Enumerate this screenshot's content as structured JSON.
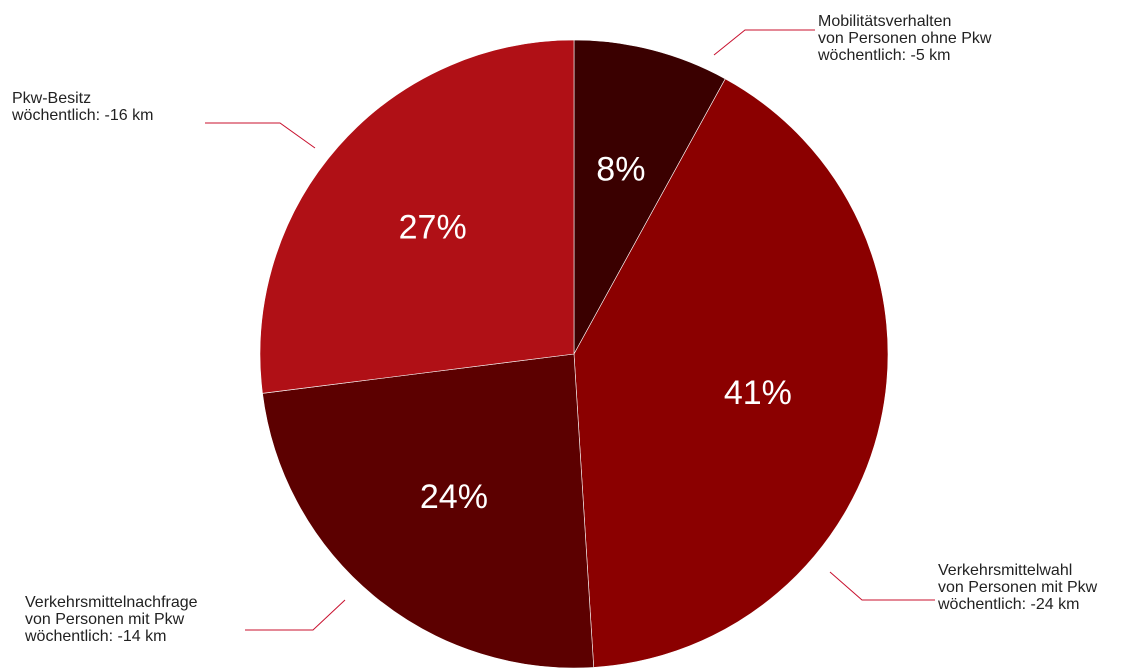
{
  "chart_data": {
    "type": "pie",
    "categories": [
      [
        "Mobilitätsverhalten",
        "von Personen ohne Pkw",
        "wöchentlich: -5 km"
      ],
      [
        "Verkehrsmittelwahl",
        "von Personen mit Pkw",
        "wöchentlich: -24 km"
      ],
      [
        "Verkehrsmittelnachfrage",
        "von Personen mit Pkw",
        "wöchentlich: -14 km"
      ],
      [
        "Pkw-Besitz",
        "wöchentlich: -16 km"
      ]
    ],
    "values": [
      8,
      41,
      24,
      27
    ],
    "value_labels": [
      "8%",
      "41%",
      "24%",
      "27%"
    ],
    "colors": [
      "#3a0000",
      "#8b0000",
      "#5c0000",
      "#b01016"
    ]
  }
}
